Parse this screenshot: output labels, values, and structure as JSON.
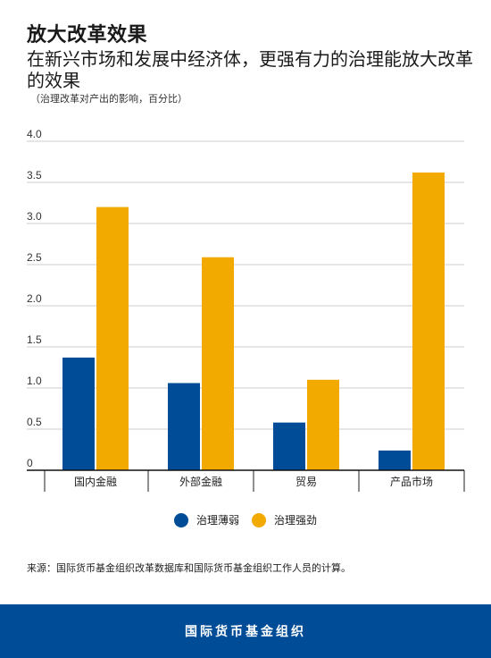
{
  "header": {
    "title": "放大改革效果",
    "subtitle": "在新兴市场和发展中经济体，更强有力的治理能放大改革的效果",
    "note": "（治理改革对产出的影响，百分比）"
  },
  "chart_data": {
    "type": "bar",
    "categories": [
      "国内金融",
      "外部金融",
      "贸易",
      "产品市场"
    ],
    "series": [
      {
        "name": "治理薄弱",
        "color": "#004c97",
        "values": [
          1.37,
          1.06,
          0.58,
          0.24
        ]
      },
      {
        "name": "治理强劲",
        "color": "#f2a900",
        "values": [
          3.2,
          2.59,
          1.1,
          3.62
        ]
      }
    ],
    "ylim": [
      0,
      4.0
    ],
    "yticks": [
      "0",
      "0.5",
      "1.0",
      "1.5",
      "2.0",
      "2.5",
      "3.0",
      "3.5",
      "4.0"
    ],
    "grid": true,
    "legend": "bottom-center"
  },
  "source": "来源：国际货币基金组织改革数据库和国际货币基金组织工作人员的计算。",
  "footer": {
    "org": "国际货币基金组织"
  }
}
